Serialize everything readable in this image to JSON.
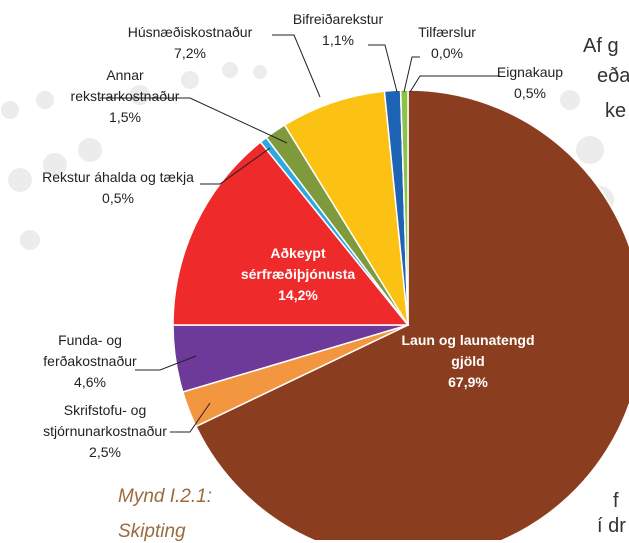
{
  "chart_data": {
    "type": "pie",
    "categories": [
      "Laun og launatengd gjöld",
      "Skrifstofu- og stjórnunarkostnaður",
      "Funda- og ferðakostnaður",
      "Aðkeypt sérfræðiþjónusta",
      "Rekstur áhalda og tækja",
      "Annar rekstrarkostnaður",
      "Húsnæðiskostnaður",
      "Bifreiðarekstur",
      "Tilfærslur",
      "Eignakaup"
    ],
    "values": [
      67.9,
      2.5,
      4.6,
      14.2,
      0.5,
      1.5,
      7.2,
      1.1,
      0.0,
      0.5
    ],
    "value_labels": [
      "67,9%",
      "2,5%",
      "4,6%",
      "14,2%",
      "0,5%",
      "1,5%",
      "7,2%",
      "1,1%",
      "0,0%",
      "0,5%"
    ],
    "colors": [
      "#8b3e1f",
      "#f39640",
      "#6e3a9a",
      "#ee2a2a",
      "#2ea8e0",
      "#7f9a3c",
      "#fbc214",
      "#1f63b5",
      "#999999",
      "#8bc34a"
    ]
  },
  "background_text": [
    "Af g",
    "eða",
    "ke",
    "f",
    "í dr"
  ],
  "caption": [
    "Mynd I.2.1:",
    "Skipting"
  ]
}
